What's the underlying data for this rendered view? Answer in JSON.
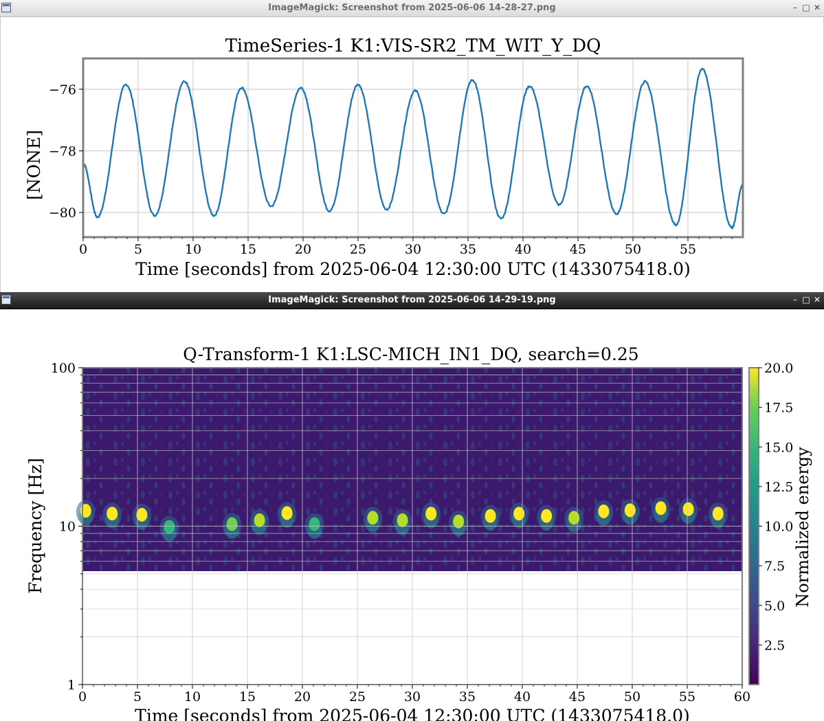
{
  "windows": [
    {
      "title": "ImageMagick: Screenshot from 2025-06-06 14-28-27.png",
      "active": false,
      "buttons": {
        "minimize": "–",
        "maximize": "□",
        "close": "✕"
      },
      "chart_data": {
        "type": "line",
        "title": "TimeSeries-1 K1:VIS-SR2_TM_WIT_Y_DQ",
        "xlabel": "Time [seconds] from 2025-06-04 12:30:00 UTC (1433075418.0)",
        "ylabel": "[NONE]",
        "xlim": [
          0,
          60
        ],
        "ylim": [
          -80.8,
          -75.0
        ],
        "xticks": [
          0,
          5,
          10,
          15,
          20,
          25,
          30,
          35,
          40,
          45,
          50,
          55
        ],
        "yticks": [
          -80,
          -78,
          -76
        ],
        "ytick_labels": [
          "−80",
          "−78",
          "−76"
        ],
        "grid": true,
        "line_color": "#1f77b4",
        "extrema": [
          {
            "t": 0.0,
            "v": -78.4
          },
          {
            "t": 1.3,
            "v": -80.15
          },
          {
            "t": 3.9,
            "v": -75.85
          },
          {
            "t": 6.5,
            "v": -80.1
          },
          {
            "t": 9.2,
            "v": -75.75
          },
          {
            "t": 11.9,
            "v": -80.1
          },
          {
            "t": 14.4,
            "v": -75.95
          },
          {
            "t": 17.1,
            "v": -79.8
          },
          {
            "t": 19.8,
            "v": -75.95
          },
          {
            "t": 22.4,
            "v": -79.95
          },
          {
            "t": 25.0,
            "v": -75.85
          },
          {
            "t": 27.6,
            "v": -79.9
          },
          {
            "t": 30.2,
            "v": -76.05
          },
          {
            "t": 32.8,
            "v": -80.05
          },
          {
            "t": 35.4,
            "v": -75.7
          },
          {
            "t": 38.0,
            "v": -80.2
          },
          {
            "t": 40.6,
            "v": -75.9
          },
          {
            "t": 43.3,
            "v": -79.75
          },
          {
            "t": 45.8,
            "v": -75.9
          },
          {
            "t": 48.5,
            "v": -80.05
          },
          {
            "t": 51.1,
            "v": -75.75
          },
          {
            "t": 53.9,
            "v": -80.4
          },
          {
            "t": 56.3,
            "v": -75.35
          },
          {
            "t": 59.0,
            "v": -80.5
          },
          {
            "t": 60.0,
            "v": -79.1
          }
        ]
      }
    },
    {
      "title": "ImageMagick: Screenshot from 2025-06-06 14-29-19.png",
      "active": true,
      "buttons": {
        "minimize": "–",
        "maximize": "□",
        "close": "✕"
      },
      "chart_data": {
        "type": "heatmap",
        "title": "Q-Transform-1 K1:LSC-MICH_IN1_DQ, search=0.25",
        "xlabel": "Time [seconds] from 2025-06-04 12:30:00 UTC (1433075418.0)",
        "ylabel": "Frequency [Hz]",
        "colorbar_label": "Normalized energy",
        "colormap": "viridis",
        "xlim": [
          0,
          60
        ],
        "ylim": [
          1,
          100
        ],
        "yscale": "log",
        "xticks": [
          0,
          5,
          10,
          15,
          20,
          25,
          30,
          35,
          40,
          45,
          50,
          55,
          60
        ],
        "yticks": [
          1,
          10,
          100
        ],
        "clim": [
          0,
          20
        ],
        "colorbar_ticks": [
          "2.5",
          "5.0",
          "7.5",
          "10.0",
          "12.5",
          "15.0",
          "17.5",
          "20.0"
        ],
        "data_freq_range": [
          5.2,
          100
        ],
        "grid": true,
        "bright_spots": [
          {
            "t": 0.3,
            "f": 12.5,
            "energy": 20
          },
          {
            "t": 2.7,
            "f": 12.0,
            "energy": 20
          },
          {
            "t": 5.4,
            "f": 11.8,
            "energy": 20
          },
          {
            "t": 7.9,
            "f": 9.9,
            "energy": 14
          },
          {
            "t": 13.6,
            "f": 10.3,
            "energy": 16
          },
          {
            "t": 16.1,
            "f": 10.9,
            "energy": 18
          },
          {
            "t": 18.6,
            "f": 12.1,
            "energy": 20
          },
          {
            "t": 21.1,
            "f": 10.3,
            "energy": 13
          },
          {
            "t": 26.4,
            "f": 11.3,
            "energy": 18
          },
          {
            "t": 29.1,
            "f": 10.9,
            "energy": 17
          },
          {
            "t": 31.7,
            "f": 12.0,
            "energy": 20
          },
          {
            "t": 34.2,
            "f": 10.7,
            "energy": 17
          },
          {
            "t": 37.1,
            "f": 11.6,
            "energy": 19
          },
          {
            "t": 39.7,
            "f": 12.0,
            "energy": 20
          },
          {
            "t": 42.2,
            "f": 11.6,
            "energy": 20
          },
          {
            "t": 44.7,
            "f": 11.3,
            "energy": 18
          },
          {
            "t": 47.4,
            "f": 12.4,
            "energy": 20
          },
          {
            "t": 49.8,
            "f": 12.6,
            "energy": 20
          },
          {
            "t": 52.6,
            "f": 13.0,
            "energy": 20
          },
          {
            "t": 55.1,
            "f": 12.8,
            "energy": 20
          },
          {
            "t": 57.8,
            "f": 12.0,
            "energy": 20
          }
        ]
      }
    }
  ]
}
